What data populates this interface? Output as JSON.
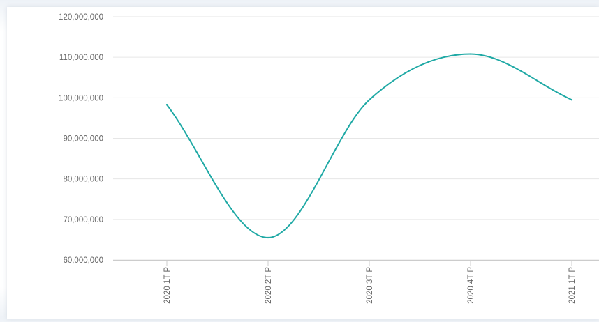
{
  "chart_data": {
    "type": "line",
    "categories": [
      "2020 1T P",
      "2020 2T P",
      "2020 3T P",
      "2020 4T P",
      "2021 1T P"
    ],
    "series": [
      {
        "values": [
          98300000,
          65500000,
          99500000,
          110800000,
          99500000
        ]
      }
    ],
    "yticks": [
      "60,000,000",
      "70,000,000",
      "80,000,000",
      "90,000,000",
      "100,000,000",
      "110,000,000",
      "120,000,000"
    ],
    "ylim": [
      60000000,
      120000000
    ],
    "grid": true,
    "smooth": true,
    "line_color": "#1fa9a5",
    "grid_color": "#e6e6e6"
  }
}
